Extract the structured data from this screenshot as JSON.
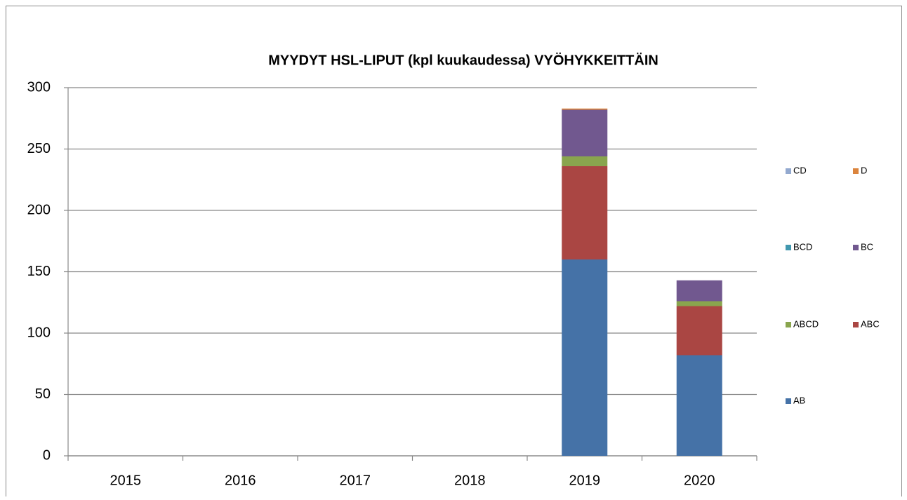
{
  "chart_data": {
    "type": "stacked_bar",
    "title": "MYYDYT HSL-LIPUT (kpl kuukaudessa) VYÖHYKKEITTÄIN",
    "categories": [
      "2015",
      "2016",
      "2017",
      "2018",
      "2019",
      "2020"
    ],
    "series": [
      {
        "name": "AB",
        "color": "#4572a7",
        "values": [
          null,
          null,
          null,
          null,
          160,
          82
        ]
      },
      {
        "name": "ABC",
        "color": "#aa4643",
        "values": [
          null,
          null,
          null,
          null,
          76,
          40
        ]
      },
      {
        "name": "ABCD",
        "color": "#89a54e",
        "values": [
          null,
          null,
          null,
          null,
          8,
          4
        ]
      },
      {
        "name": "BC",
        "color": "#71588f",
        "values": [
          null,
          null,
          null,
          null,
          38,
          17
        ]
      },
      {
        "name": "BCD",
        "color": "#4198af",
        "values": [
          null,
          null,
          null,
          null,
          0,
          0
        ]
      },
      {
        "name": "D",
        "color": "#db843d",
        "values": [
          null,
          null,
          null,
          null,
          1,
          0
        ]
      },
      {
        "name": "CD",
        "color": "#93a9cf",
        "values": [
          null,
          null,
          null,
          null,
          0,
          0
        ]
      }
    ],
    "ylim": [
      0,
      300
    ],
    "yticks": [
      0,
      50,
      100,
      150,
      200,
      250,
      300
    ],
    "grid": true,
    "legend": "right"
  }
}
